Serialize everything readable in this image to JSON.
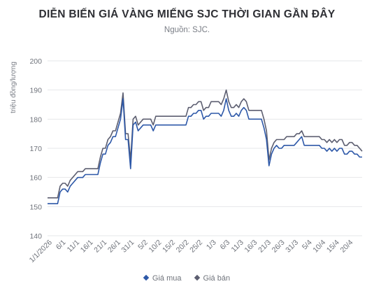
{
  "chart_data": {
    "type": "line",
    "title": "DIỄN BIẾN GIÁ VÀNG MIẾNG SJC THỜI GIAN GẦN ĐÂY",
    "subtitle": "Nguồn: SJC.",
    "ylabel": "triệu đồng/lượng",
    "xlabel": "",
    "ylim": [
      140,
      200
    ],
    "yticks": [
      140,
      150,
      160,
      170,
      180,
      190,
      200
    ],
    "xtick_labels": [
      "1/1/2026",
      "6/1",
      "11/1",
      "16/1",
      "21/1",
      "26/1",
      "31/1",
      "5/2",
      "10/2",
      "15/2",
      "20/2",
      "25/2",
      "1/3",
      "6/3",
      "11/3",
      "16/3",
      "21/3",
      "26/3",
      "31/3",
      "5/4",
      "10/4",
      "15/4",
      "20/4"
    ],
    "grid": true,
    "legend_position": "bottom",
    "series": [
      {
        "name": "Giá mua",
        "color": "#2d58a8",
        "values": [
          151,
          151,
          151,
          151,
          151,
          155,
          156,
          156,
          155,
          157,
          158,
          159,
          160,
          160,
          160,
          161,
          161,
          161,
          161,
          161,
          161,
          165,
          168,
          168,
          171,
          172,
          174,
          174,
          177,
          180,
          187,
          173,
          173,
          163,
          178,
          179,
          176,
          177,
          178,
          178,
          178,
          178,
          176,
          178,
          178,
          178,
          178,
          178,
          178,
          178,
          178,
          178,
          178,
          178,
          178,
          178,
          181,
          181,
          182,
          182,
          183,
          183,
          180,
          181,
          181,
          182,
          182,
          182,
          182,
          181,
          183,
          187,
          183,
          181,
          181,
          182,
          181,
          183,
          184,
          183,
          180,
          180,
          180,
          180,
          180,
          180,
          177,
          173,
          164,
          168,
          170,
          171,
          170,
          170,
          171,
          171,
          171,
          171,
          171,
          172,
          173,
          174,
          171,
          171,
          171,
          171,
          171,
          171,
          171,
          170,
          170,
          169,
          170,
          169,
          170,
          169,
          170,
          170,
          168,
          168,
          169,
          169,
          168,
          168,
          167,
          167
        ]
      },
      {
        "name": "Giá bán",
        "color": "#5c5e70",
        "values": [
          153,
          153,
          153,
          153,
          153,
          157,
          158,
          158,
          157,
          159,
          160,
          161,
          162,
          162,
          162,
          163,
          163,
          163,
          163,
          163,
          163,
          167,
          170,
          170,
          173,
          174,
          176,
          176,
          179,
          182,
          189,
          175,
          175,
          166,
          180,
          181,
          178,
          179,
          180,
          180,
          180,
          180,
          178,
          181,
          181,
          181,
          181,
          181,
          181,
          181,
          181,
          181,
          181,
          181,
          181,
          181,
          184,
          184,
          185,
          185,
          186,
          186,
          183,
          184,
          184,
          186,
          186,
          186,
          186,
          185,
          187,
          190,
          186,
          184,
          184,
          185,
          184,
          186,
          187,
          186,
          183,
          183,
          183,
          183,
          183,
          183,
          180,
          176,
          166,
          170,
          172,
          173,
          173,
          173,
          173,
          174,
          174,
          174,
          174,
          175,
          175,
          176,
          174,
          174,
          174,
          174,
          174,
          174,
          174,
          173,
          173,
          172,
          173,
          172,
          173,
          172,
          173,
          173,
          171,
          171,
          172,
          172,
          171,
          171,
          170,
          169
        ]
      }
    ]
  }
}
